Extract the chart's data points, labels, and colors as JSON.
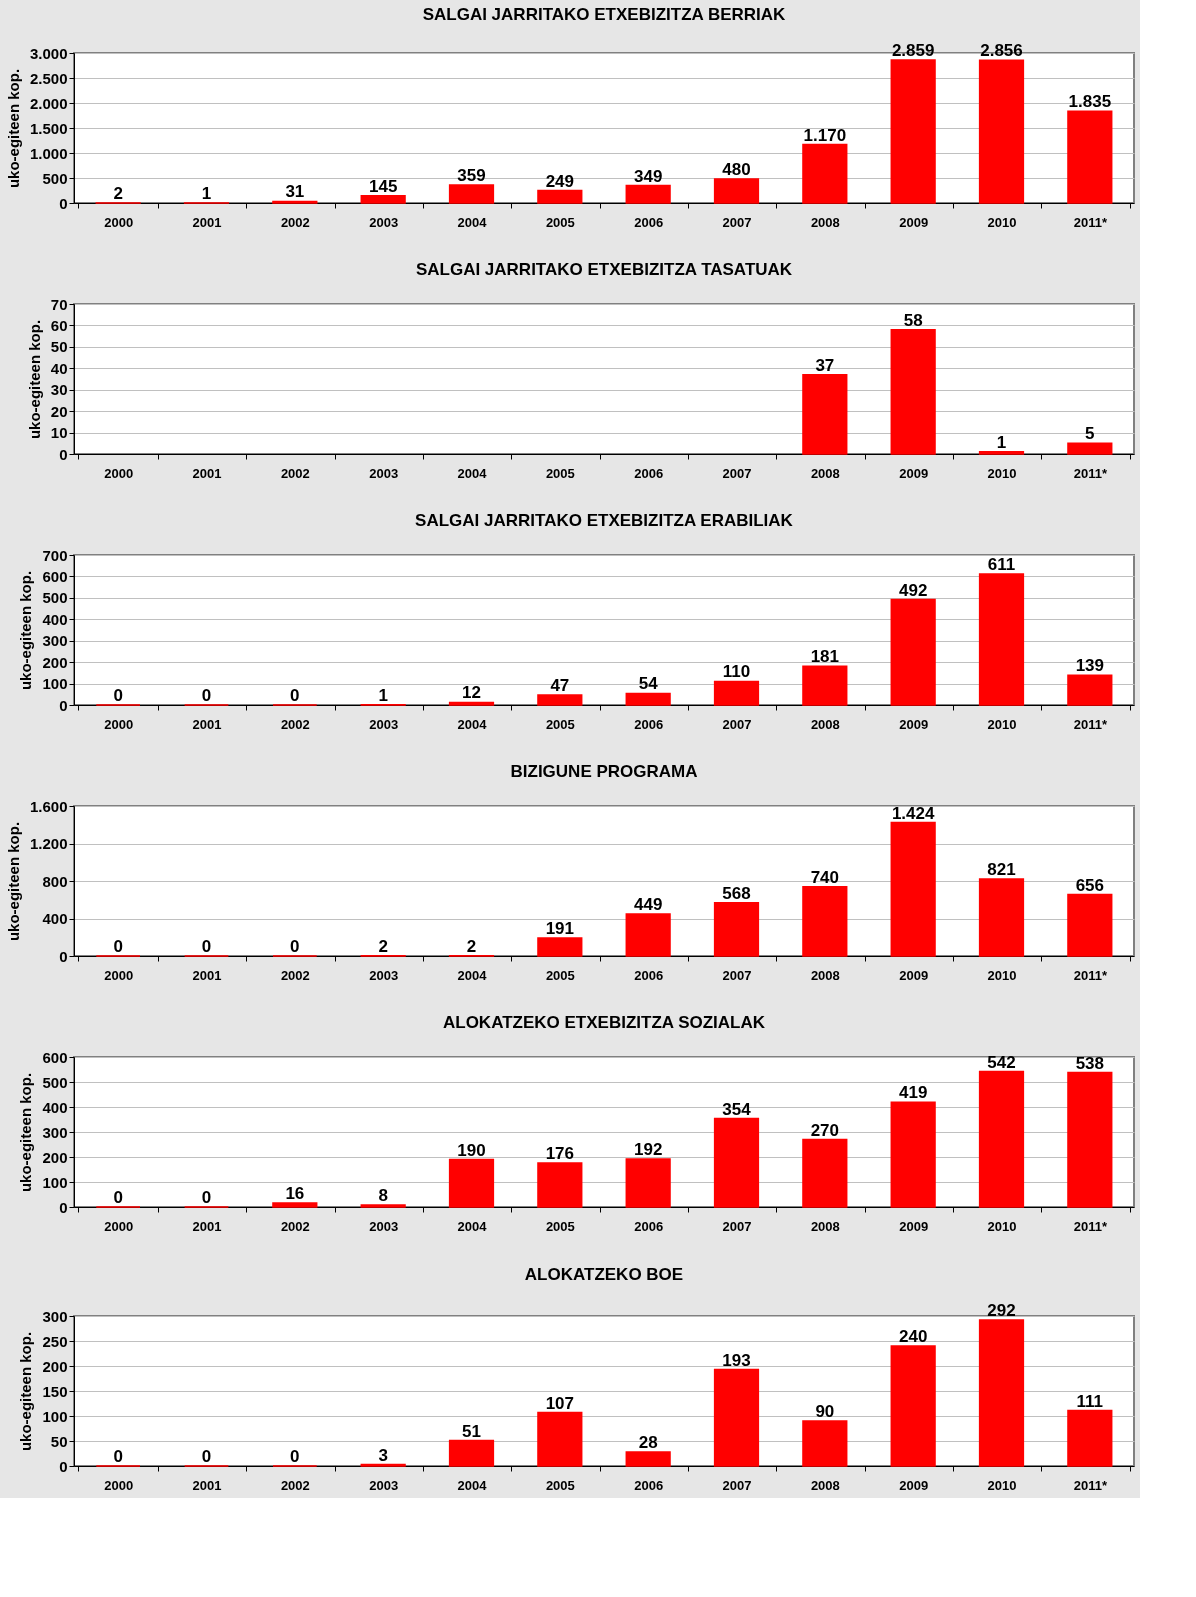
{
  "chart_data": [
    {
      "type": "bar",
      "title": "SALGAI JARRITAKO ETXEBIZITZA BERRIAK",
      "ylabel": "uko-egiteen kop.",
      "categories": [
        "2000",
        "2001",
        "2002",
        "2003",
        "2004",
        "2005",
        "2006",
        "2007",
        "2008",
        "2009",
        "2010",
        "2011*"
      ],
      "values": [
        2,
        1,
        31,
        145,
        359,
        249,
        349,
        480,
        1170,
        2859,
        2856,
        1835
      ],
      "value_labels": [
        "2",
        "1",
        "31",
        "145",
        "359",
        "249",
        "349",
        "480",
        "1.170",
        "2.859",
        "2.856",
        "1.835"
      ],
      "color": "#ff0000",
      "ylim": [
        0,
        3000
      ],
      "yticks": [
        0,
        500,
        {
          "value": 1000,
          "label": "1.000"
        },
        {
          "value": 1500,
          "label": "1.500"
        },
        {
          "value": 2000,
          "label": "2.000"
        },
        {
          "value": 2500,
          "label": "2.500"
        },
        {
          "value": 3000,
          "label": "3.000"
        }
      ],
      "grid": "y"
    },
    {
      "type": "bar",
      "title": "SALGAI JARRITAKO ETXEBIZITZA TASATUAK",
      "ylabel": "uko-egiteen kop.",
      "categories": [
        "2000",
        "2001",
        "2002",
        "2003",
        "2004",
        "2005",
        "2006",
        "2007",
        "2008",
        "2009",
        "2010",
        "2011*"
      ],
      "values": [
        null,
        null,
        null,
        null,
        null,
        null,
        null,
        null,
        37,
        58,
        1,
        5
      ],
      "value_labels": [
        null,
        null,
        null,
        null,
        null,
        null,
        null,
        null,
        "37",
        "58",
        "1",
        "5"
      ],
      "color": "#ff0000",
      "ylim": [
        0,
        70
      ],
      "yticks": [
        0,
        10,
        20,
        30,
        40,
        50,
        60,
        70
      ],
      "grid": "y"
    },
    {
      "type": "bar",
      "title": "SALGAI JARRITAKO ETXEBIZITZA ERABILIAK",
      "ylabel": "uko-egiteen kop.",
      "categories": [
        "2000",
        "2001",
        "2002",
        "2003",
        "2004",
        "2005",
        "2006",
        "2007",
        "2008",
        "2009",
        "2010",
        "2011*"
      ],
      "values": [
        0,
        0,
        0,
        1,
        12,
        47,
        54,
        110,
        181,
        492,
        611,
        139
      ],
      "value_labels": [
        "0",
        "0",
        "0",
        "1",
        "12",
        "47",
        "54",
        "110",
        "181",
        "492",
        "611",
        "139"
      ],
      "color": "#ff0000",
      "ylim": [
        0,
        700
      ],
      "yticks": [
        0,
        100,
        200,
        300,
        400,
        500,
        600,
        700
      ],
      "grid": "y"
    },
    {
      "type": "bar",
      "title": "BIZIGUNE PROGRAMA",
      "ylabel": "uko-egiteen kop.",
      "categories": [
        "2000",
        "2001",
        "2002",
        "2003",
        "2004",
        "2005",
        "2006",
        "2007",
        "2008",
        "2009",
        "2010",
        "2011*"
      ],
      "values": [
        0,
        0,
        0,
        2,
        2,
        191,
        449,
        568,
        740,
        1424,
        821,
        656
      ],
      "value_labels": [
        "0",
        "0",
        "0",
        "2",
        "2",
        "191",
        "449",
        "568",
        "740",
        "1.424",
        "821",
        "656"
      ],
      "color": "#ff0000",
      "ylim": [
        0,
        1600
      ],
      "yticks": [
        0,
        400,
        800,
        {
          "value": 1200,
          "label": "1.200"
        },
        {
          "value": 1600,
          "label": "1.600"
        }
      ],
      "grid": "y"
    },
    {
      "type": "bar",
      "title": "ALOKATZEKO ETXEBIZITZA SOZIALAK",
      "ylabel": "uko-egiteen kop.",
      "categories": [
        "2000",
        "2001",
        "2002",
        "2003",
        "2004",
        "2005",
        "2006",
        "2007",
        "2008",
        "2009",
        "2010",
        "2011*"
      ],
      "values": [
        0,
        0,
        16,
        8,
        190,
        176,
        192,
        354,
        270,
        419,
        542,
        538
      ],
      "value_labels": [
        "0",
        "0",
        "16",
        "8",
        "190",
        "176",
        "192",
        "354",
        "270",
        "419",
        "542",
        "538"
      ],
      "color": "#ff0000",
      "ylim": [
        0,
        600
      ],
      "yticks": [
        0,
        100,
        200,
        300,
        400,
        500,
        600
      ],
      "grid": "y"
    },
    {
      "type": "bar",
      "title": "ALOKATZEKO BOE",
      "ylabel": "uko-egiteen kop.",
      "categories": [
        "2000",
        "2001",
        "2002",
        "2003",
        "2004",
        "2005",
        "2006",
        "2007",
        "2008",
        "2009",
        "2010",
        "2011*"
      ],
      "values": [
        0,
        0,
        0,
        3,
        51,
        107,
        28,
        193,
        90,
        240,
        292,
        111
      ],
      "value_labels": [
        "0",
        "0",
        "0",
        "3",
        "51",
        "107",
        "28",
        "193",
        "90",
        "240",
        "292",
        "111"
      ],
      "color": "#ff0000",
      "ylim": [
        0,
        300
      ],
      "yticks": [
        0,
        50,
        100,
        150,
        200,
        250,
        300
      ],
      "grid": "y"
    }
  ]
}
